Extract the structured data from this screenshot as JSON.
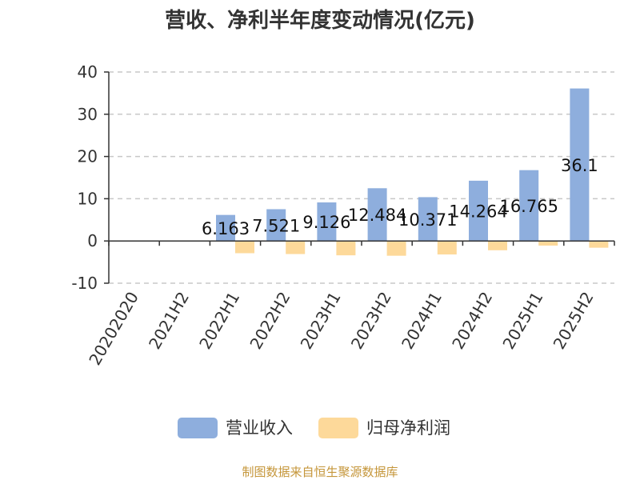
{
  "chart_data": {
    "type": "bar",
    "title": "营收、净利半年度变动情况(亿元)",
    "categories": [
      "20202020",
      "2021H2",
      "2022H1",
      "2022H2",
      "2023H1",
      "2023H2",
      "2024H1",
      "2024H2",
      "2025H1",
      "2025H2"
    ],
    "series": [
      {
        "name": "营业收入",
        "color": "#8eaedd",
        "values": [
          null,
          null,
          6.163,
          7.521,
          9.126,
          12.484,
          10.371,
          14.264,
          16.765,
          36.1
        ],
        "labels": [
          "",
          "",
          "6.163",
          "7.521",
          "9.126",
          "12.484",
          "10.371",
          "14.264",
          "16.765",
          "36.1"
        ]
      },
      {
        "name": "归母净利润",
        "color": "#fdd99a",
        "values": [
          null,
          null,
          -2.9,
          -3.1,
          -3.4,
          -3.5,
          -3.2,
          -2.2,
          -1.1,
          -1.6
        ]
      }
    ],
    "yticks": [
      -10,
      0,
      10,
      20,
      30,
      40
    ],
    "ylim": [
      -10,
      40
    ],
    "grid": true,
    "legend_position": "bottom"
  },
  "footer": "制图数据来自恒生聚源数据库"
}
